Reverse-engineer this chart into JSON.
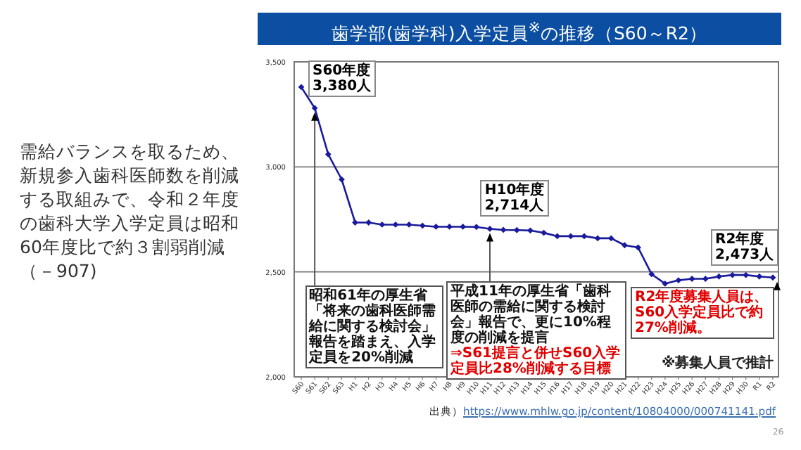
{
  "chart_data": {
    "type": "line",
    "title": "歯学部(歯学科)入学定員$^{※}$の推移（S60～R2）",
    "categories": [
      "S60",
      "S61",
      "S62",
      "S63",
      "H1",
      "H2",
      "H3",
      "H4",
      "H5",
      "H6",
      "H7",
      "H8",
      "H9",
      "H10",
      "H11",
      "H12",
      "H13",
      "H14",
      "H15",
      "H16",
      "H17",
      "H18",
      "H19",
      "H20",
      "H21",
      "H22",
      "H23",
      "H24",
      "H25",
      "H26",
      "H27",
      "H28",
      "H29",
      "H30",
      "R1",
      "R2"
    ],
    "series": [
      {
        "color": "#1a1a9c",
        "values": [
          3380,
          3280,
          3060,
          2940,
          2735,
          2735,
          2725,
          2725,
          2725,
          2720,
          2715,
          2715,
          2715,
          2714,
          2705,
          2700,
          2699,
          2697,
          2686,
          2670,
          2670,
          2670,
          2660,
          2660,
          2627,
          2616,
          2489,
          2444,
          2460,
          2467,
          2467,
          2478,
          2485,
          2485,
          2478,
          2473
        ]
      }
    ],
    "ylim": [
      2000,
      3500
    ],
    "yticks": [
      {
        "value": 2000,
        "label": "2,000"
      },
      {
        "value": 2500,
        "label": "2,500"
      },
      {
        "value": 3000,
        "label": "3,000"
      },
      {
        "value": 3500,
        "label": "3,500"
      }
    ],
    "grid": "y",
    "marker": "diamond",
    "line_style": "solid",
    "annotations": [
      "需給バランスを取るため、新規参入歯科医師数を削減する取組みで、令和２年度の歯科大学入学定員は昭和60年度比で約３割弱削減（－907)",
      {
        "text": "S60年度 3,380人",
        "x": "S60",
        "y": 3380
      },
      {
        "text": "H10年度 2,714人",
        "x": "H10",
        "y": 2714
      },
      {
        "text": "R2年度 2,473人",
        "x": "R2",
        "y": 2473
      },
      {
        "text": "昭和61年の厚生省「将来の歯科医師需給に関する検討会」報告を踏まえ、入学定員を20%削減",
        "x": "S61",
        "y": 3280
      },
      {
        "text": "平成11年の厚生省「歯科医師の需給に関する検討会」報告で、更に10%程度の削減を提言",
        "x": "H11",
        "y": 2705
      },
      "⇒S61提言と併せS60入学定員比28%削減する目標",
      {
        "text": "R2年度募集人員は、S60入学定員比で約27%削減。",
        "x": "R2",
        "y": 2473
      },
      "※募集人員で推計",
      "出典）",
      "https://www.mhlw.go.jp/content/10804000/000741141.pdf",
      "26"
    ]
  }
}
